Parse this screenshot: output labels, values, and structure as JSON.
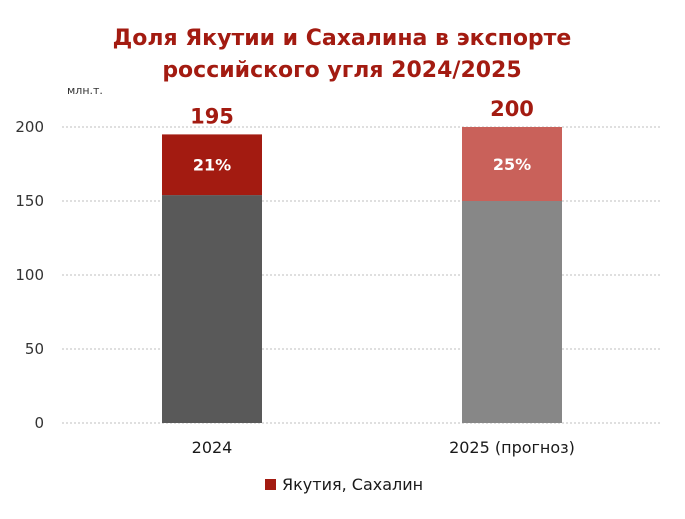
{
  "chart_data": {
    "type": "bar",
    "stacked": true,
    "title_lines": [
      "Доля Якутии и Сахалина в экспорте",
      "российского угля 2024/2025"
    ],
    "unit_label": "млн.т.",
    "categories": [
      "2024",
      "2025 (прогноз)"
    ],
    "totals": [
      "195",
      "200"
    ],
    "share_labels": [
      "21%",
      "25%"
    ],
    "series": [
      {
        "values": [
          154,
          150
        ],
        "colors": [
          "#595959",
          "#878787"
        ]
      },
      {
        "name": "Якутия, Сахалин",
        "values": [
          41,
          50
        ],
        "colors": [
          "#a31b11",
          "#c9615a"
        ]
      }
    ],
    "ylim": [
      0,
      200
    ],
    "yticks": [
      "0",
      "50",
      "100",
      "150",
      "200"
    ],
    "grid": true,
    "legend_position": "bottom",
    "title_color": "#a31b11",
    "total_color": "#a31b11",
    "legend_color": "#a31b11"
  }
}
